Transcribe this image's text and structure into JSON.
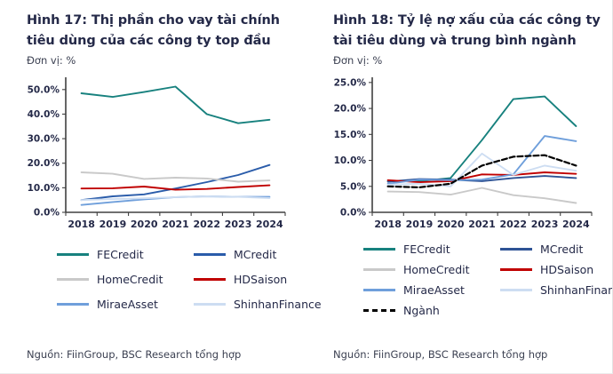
{
  "panels": [
    {
      "title": "Hình 17: Thị phần cho vay tài chính tiêu dùng của các công ty top đầu",
      "unit": "Đơn vị: %",
      "source": "Nguồn: FiinGroup, BSC Research tổng hợp"
    },
    {
      "title": "Hình 18: Tỷ lệ nợ xấu của các công ty tài tiêu dùng và trung bình ngành",
      "unit": "Đơn vị: %",
      "source": "Nguồn: FiinGroup, BSC Research tổng hợp"
    }
  ],
  "colors": {
    "title_text": "#242948",
    "body_text": "#3c4152",
    "axis": "#404040",
    "teal": "#17817e",
    "navy": "#2a5caa",
    "dark_navy": "#2e5395",
    "gray": "#c9c9c9",
    "red": "#c00000",
    "cornflower": "#6f9fdb",
    "pale_blue": "#cdddf2",
    "black": "#000000"
  },
  "chart_data": [
    {
      "type": "line",
      "title": "Hình 17: Thị phần cho vay tài chính tiêu dùng của các công ty top đầu",
      "xlabel": "",
      "ylabel": "Đơn vị: %",
      "categories": [
        "2018",
        "2019",
        "2020",
        "2021",
        "2022",
        "2023",
        "2024"
      ],
      "ylim": [
        0,
        55
      ],
      "yticks": [
        0,
        10,
        20,
        30,
        40,
        50
      ],
      "grid": false,
      "legend_position": "bottom",
      "series": [
        {
          "name": "FECredit",
          "color": "#17817e",
          "values": [
            48.5,
            47.0,
            49.0,
            51.2,
            40.0,
            36.3,
            37.7
          ]
        },
        {
          "name": "MCredit",
          "color": "#2a5caa",
          "values": [
            5.0,
            6.5,
            7.3,
            9.7,
            12.3,
            15.2,
            19.3
          ]
        },
        {
          "name": "HomeCredit",
          "color": "#c9c9c9",
          "values": [
            16.3,
            15.7,
            13.6,
            14.1,
            13.8,
            12.5,
            13.0
          ]
        },
        {
          "name": "HDSaison",
          "color": "#c00000",
          "values": [
            9.7,
            9.8,
            10.5,
            9.2,
            9.5,
            10.3,
            11.0
          ]
        },
        {
          "name": "MiraeAsset",
          "color": "#6f9fdb",
          "values": [
            3.0,
            4.2,
            5.3,
            6.2,
            6.5,
            6.3,
            6.3
          ]
        },
        {
          "name": "ShinhanFinance",
          "color": "#cdddf2",
          "values": [
            5.0,
            5.4,
            5.7,
            6.2,
            6.5,
            6.3,
            5.8
          ]
        }
      ]
    },
    {
      "type": "line",
      "title": "Hình 18: Tỷ lệ nợ xấu của các công ty tài tiêu dùng và trung bình ngành",
      "xlabel": "",
      "ylabel": "Đơn vị: %",
      "categories": [
        "2018",
        "2019",
        "2020",
        "2021",
        "2022",
        "2023",
        "2024"
      ],
      "ylim": [
        0,
        26
      ],
      "yticks": [
        0,
        5,
        10,
        15,
        20,
        25
      ],
      "grid": false,
      "legend_position": "bottom",
      "series": [
        {
          "name": "FECredit",
          "color": "#17817e",
          "values": [
            6.0,
            6.0,
            6.6,
            13.9,
            21.8,
            22.3,
            16.6
          ]
        },
        {
          "name": "MCredit",
          "color": "#2e5395",
          "values": [
            5.9,
            6.4,
            6.3,
            6.0,
            6.6,
            7.0,
            6.6
          ]
        },
        {
          "name": "HomeCredit",
          "color": "#c9c9c9",
          "values": [
            4.0,
            3.9,
            3.4,
            4.7,
            3.3,
            2.7,
            1.8
          ]
        },
        {
          "name": "HDSaison",
          "color": "#c00000",
          "values": [
            6.2,
            5.8,
            6.0,
            7.3,
            7.2,
            7.7,
            7.4
          ]
        },
        {
          "name": "MiraeAsset",
          "color": "#6f9fdb",
          "values": [
            5.5,
            6.3,
            6.2,
            6.3,
            7.3,
            14.7,
            13.7
          ]
        },
        {
          "name": "ShinhanFinance",
          "color": "#cdddf2",
          "values": [
            5.3,
            5.5,
            5.0,
            11.3,
            7.2,
            9.0,
            8.0
          ]
        },
        {
          "name": "Ngành",
          "color": "#000000",
          "dash": true,
          "values": [
            5.0,
            4.8,
            5.5,
            9.0,
            10.7,
            11.0,
            9.0
          ]
        }
      ]
    }
  ]
}
